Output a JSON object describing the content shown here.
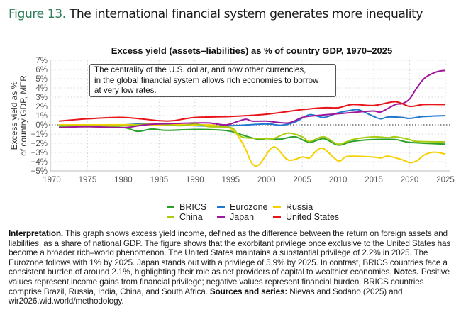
{
  "figure": {
    "number": "Figure 13.",
    "title": "The international financial system generates more inequality",
    "number_color": "#2f7d5b"
  },
  "annotation": [
    "The centrality of the U.S. dollar, and now other currencies,",
    "in the global financial system allows rich economies to borrow",
    "at very low rates."
  ],
  "chart_data": {
    "type": "line",
    "title": "Excess yield (assets–liabilities) as % of country GDP, 1970–2025",
    "xlabel": "",
    "ylabel": [
      "Excess yield as %",
      "of country GDP, MER"
    ],
    "xlim": [
      1970,
      2025
    ],
    "ylim": [
      -5,
      7
    ],
    "xticks": [
      "1970",
      "1975",
      "1980",
      "1985",
      "1990",
      "1995",
      "2000",
      "2005",
      "2010",
      "2015",
      "2020",
      "2025"
    ],
    "yticks": [
      "7%",
      "6%",
      "5%",
      "4%",
      "3%",
      "2%",
      "1%",
      "0%",
      "−1%",
      "−2%",
      "−3%",
      "−4%",
      "−5%"
    ],
    "grid": true,
    "zero_line": "dotted",
    "legend_position": "bottom",
    "series": [
      {
        "name": "BRICS",
        "color": "#2ca02c",
        "points": [
          [
            1971,
            -0.2
          ],
          [
            1975,
            -0.2
          ],
          [
            1980,
            -0.3
          ],
          [
            1982,
            -0.7
          ],
          [
            1984,
            -0.45
          ],
          [
            1986,
            -0.6
          ],
          [
            1990,
            -0.5
          ],
          [
            1993,
            -0.55
          ],
          [
            1995,
            -0.7
          ],
          [
            1997,
            -1.2
          ],
          [
            1999,
            -1.6
          ],
          [
            2000,
            -1.5
          ],
          [
            2002,
            -1.55
          ],
          [
            2004,
            -1.3
          ],
          [
            2006,
            -1.9
          ],
          [
            2008,
            -1.5
          ],
          [
            2010,
            -2.2
          ],
          [
            2012,
            -1.8
          ],
          [
            2015,
            -1.6
          ],
          [
            2018,
            -1.6
          ],
          [
            2020,
            -1.9
          ],
          [
            2025,
            -2.1
          ]
        ]
      },
      {
        "name": "Eurozone",
        "color": "#1f77d0",
        "points": [
          [
            1980,
            0.0
          ],
          [
            1985,
            0.15
          ],
          [
            1990,
            -0.1
          ],
          [
            1995,
            -0.1
          ],
          [
            2000,
            0.1
          ],
          [
            2002,
            -0.05
          ],
          [
            2004,
            0.3
          ],
          [
            2006,
            1.1
          ],
          [
            2008,
            0.8
          ],
          [
            2010,
            1.3
          ],
          [
            2012,
            1.6
          ],
          [
            2013,
            1.6
          ],
          [
            2015,
            0.9
          ],
          [
            2016,
            0.65
          ],
          [
            2017,
            0.85
          ],
          [
            2019,
            0.8
          ],
          [
            2020,
            0.7
          ],
          [
            2022,
            0.9
          ],
          [
            2025,
            1.0
          ]
        ]
      },
      {
        "name": "Russia",
        "color": "#f5d000",
        "points": [
          [
            1971,
            0
          ],
          [
            1990,
            0
          ],
          [
            1993,
            -0.1
          ],
          [
            1995,
            -0.4
          ],
          [
            1996,
            -1.2
          ],
          [
            1997,
            -2.5
          ],
          [
            1998,
            -4.2
          ],
          [
            1999,
            -4.3
          ],
          [
            2001,
            -2.4
          ],
          [
            2003,
            -3.8
          ],
          [
            2005,
            -3.5
          ],
          [
            2006,
            -3.6
          ],
          [
            2007,
            -2.8
          ],
          [
            2008,
            -2.6
          ],
          [
            2010,
            -3.9
          ],
          [
            2011,
            -3.5
          ],
          [
            2012,
            -3.4
          ],
          [
            2015,
            -3.5
          ],
          [
            2016,
            -3.6
          ],
          [
            2017,
            -3.4
          ],
          [
            2019,
            -3.8
          ],
          [
            2020,
            -4.1
          ],
          [
            2021,
            -3.9
          ],
          [
            2022,
            -3.3
          ],
          [
            2023,
            -3.0
          ],
          [
            2024,
            -3.0
          ],
          [
            2025,
            -3.2
          ]
        ]
      },
      {
        "name": "China",
        "color": "#a8cc10",
        "points": [
          [
            1971,
            -0.1
          ],
          [
            1980,
            -0.1
          ],
          [
            1984,
            0.1
          ],
          [
            1988,
            -0.1
          ],
          [
            1990,
            0.1
          ],
          [
            1992,
            -0.2
          ],
          [
            1995,
            -0.3
          ],
          [
            1996,
            -1.0
          ],
          [
            1997,
            -1.4
          ],
          [
            2000,
            -1.5
          ],
          [
            2001,
            -1.5
          ],
          [
            2003,
            -0.9
          ],
          [
            2005,
            -1.3
          ],
          [
            2006,
            -1.8
          ],
          [
            2008,
            -1.3
          ],
          [
            2010,
            -2.1
          ],
          [
            2012,
            -1.6
          ],
          [
            2015,
            -1.3
          ],
          [
            2017,
            -1.4
          ],
          [
            2018,
            -1.3
          ],
          [
            2020,
            -1.6
          ],
          [
            2021,
            -1.8
          ],
          [
            2025,
            -1.85
          ]
        ]
      },
      {
        "name": "Japan",
        "color": "#a0179b",
        "points": [
          [
            1971,
            -0.3
          ],
          [
            1975,
            -0.2
          ],
          [
            1980,
            -0.3
          ],
          [
            1983,
            0.0
          ],
          [
            1985,
            0.1
          ],
          [
            1990,
            0.2
          ],
          [
            1992,
            0.2
          ],
          [
            1994,
            0.0
          ],
          [
            1995,
            0.1
          ],
          [
            1997,
            0.6
          ],
          [
            1998,
            0.4
          ],
          [
            2000,
            0.4
          ],
          [
            2003,
            0.2
          ],
          [
            2005,
            0.8
          ],
          [
            2007,
            1.0
          ],
          [
            2010,
            1.2
          ],
          [
            2013,
            1.4
          ],
          [
            2015,
            1.5
          ],
          [
            2016,
            1.4
          ],
          [
            2018,
            2.2
          ],
          [
            2019,
            2.3
          ],
          [
            2020,
            2.8
          ],
          [
            2021,
            4.0
          ],
          [
            2022,
            5.0
          ],
          [
            2023,
            5.5
          ],
          [
            2024,
            5.8
          ],
          [
            2025,
            5.9
          ]
        ]
      },
      {
        "name": "United States",
        "color": "#e8141a",
        "points": [
          [
            1971,
            0.4
          ],
          [
            1975,
            0.65
          ],
          [
            1980,
            0.8
          ],
          [
            1985,
            0.45
          ],
          [
            1987,
            0.45
          ],
          [
            1990,
            0.8
          ],
          [
            1995,
            0.9
          ],
          [
            2000,
            1.15
          ],
          [
            2005,
            1.65
          ],
          [
            2008,
            1.85
          ],
          [
            2010,
            1.85
          ],
          [
            2012,
            2.2
          ],
          [
            2015,
            2.1
          ],
          [
            2018,
            2.5
          ],
          [
            2020,
            2.0
          ],
          [
            2022,
            2.2
          ],
          [
            2025,
            2.2
          ]
        ]
      }
    ]
  },
  "interpretation": [
    {
      "bold": true,
      "text": "Interpretation."
    },
    {
      "bold": false,
      "text": " This graph shows excess yield income, defined as the difference between the return on foreign assets and liabilities, as a share of national GDP. The figure shows that the exorbitant privilege once exclusive to the United States has become a broader rich–world phenomenon. The United States maintains a substantial privilege of 2.2% in 2025. The Eurozone follows with 1% by 2025. Japan stands out with a privilege of 5.9% by 2025. In contrast, BRICS countries face a consistent burden of around 2.1%, highlighting their role as net providers of capital to wealthier economies. "
    },
    {
      "bold": true,
      "text": "Notes."
    },
    {
      "bold": false,
      "text": " Positive values represent income gains from financial privilege; negative values represent financial burden. BRICS countries comprise Brazil, Russia, India, China, and South Africa. "
    },
    {
      "bold": true,
      "text": "Sources and series:"
    },
    {
      "bold": false,
      "text": " Nievas and Sodano (2025) and wir2026.wid.world/methodology."
    }
  ]
}
